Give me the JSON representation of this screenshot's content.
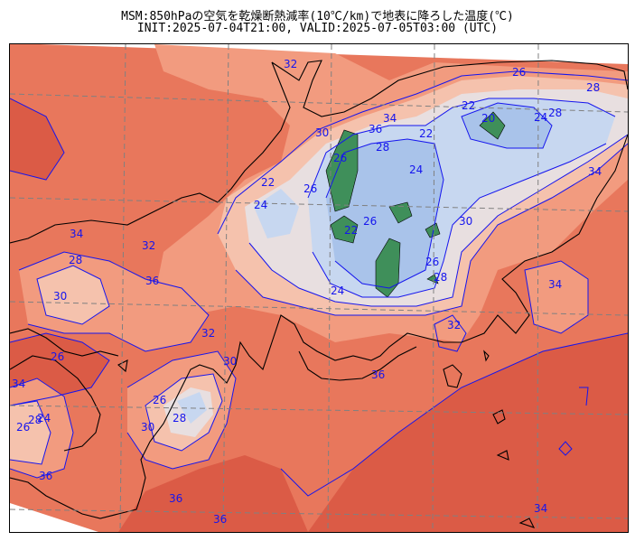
{
  "title": {
    "line1": "MSM:850hPaの空気を乾燥断熱減率(10℃/km)で地表に降ろした温度(℃)",
    "line2": "INIT:2025-07-04T21:00, VALID:2025-07-05T03:00 (UTC)"
  },
  "contour_labels": {
    "l32a": "32",
    "l26a": "26",
    "l28a": "28",
    "l24a": "24",
    "l22a": "22",
    "l20a": "20",
    "l30a": "30",
    "l34a": "34",
    "l36a": "36",
    "l26b": "26",
    "l28b": "28",
    "l22b": "22",
    "l24b": "24",
    "l26c": "26",
    "l22c": "22",
    "l24c": "24",
    "l26d": "26",
    "l24d": "24",
    "l28c": "28",
    "l32b": "32",
    "l34b": "34",
    "l36b": "36",
    "l28d": "28",
    "l30b": "30",
    "l26e": "26",
    "l28e": "28",
    "l32c": "32",
    "l34c": "34",
    "l36c": "36",
    "l26f": "26",
    "l28f": "28",
    "l30c": "30",
    "l34d": "34",
    "l36d": "36",
    "l36e": "36",
    "l34e": "34",
    "l28g": "28",
    "l30d": "30",
    "l36f": "36",
    "l32d": "32",
    "l34f": "34",
    "l30e": "30",
    "l28h": "28",
    "l26g": "26",
    "l24e": "24",
    "l22d": "22",
    "l26h": "26"
  },
  "colors": {
    "hot": "#db5b46",
    "warm": "#e8775c",
    "mild": "#f29b7f",
    "light": "#f5c2ad",
    "pale": "#e8dfe0",
    "cool": "#c7d7f0",
    "cold": "#a9c3ea",
    "green": "#3f8f5a",
    "contour": "#1515ee",
    "grid": "#808080"
  }
}
